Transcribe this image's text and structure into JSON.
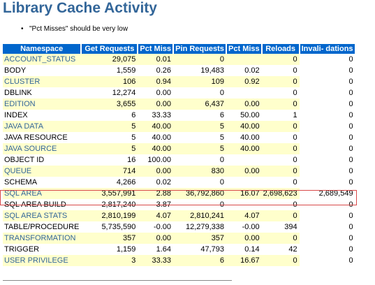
{
  "title": "Library Cache Activity",
  "note": "\"Pct Misses\" should be very low",
  "highlight_color": "#d84a4a",
  "header_color": "#0066cc",
  "columns": [
    "Namespace",
    "Get Requests",
    "Pct Miss",
    "Pin Requests",
    "Pct Miss",
    "Reloads",
    "Invali- dations"
  ],
  "rows": [
    [
      "ACCOUNT_STATUS",
      "29,075",
      "0.01",
      "0",
      "",
      "0",
      "0"
    ],
    [
      "BODY",
      "1,559",
      "0.26",
      "19,483",
      "0.02",
      "0",
      "0"
    ],
    [
      "CLUSTER",
      "106",
      "0.94",
      "109",
      "0.92",
      "0",
      "0"
    ],
    [
      "DBLINK",
      "12,274",
      "0.00",
      "0",
      "",
      "0",
      "0"
    ],
    [
      "EDITION",
      "3,655",
      "0.00",
      "6,437",
      "0.00",
      "0",
      "0"
    ],
    [
      "INDEX",
      "6",
      "33.33",
      "6",
      "50.00",
      "1",
      "0"
    ],
    [
      "JAVA DATA",
      "5",
      "40.00",
      "5",
      "40.00",
      "0",
      "0"
    ],
    [
      "JAVA RESOURCE",
      "5",
      "40.00",
      "5",
      "40.00",
      "0",
      "0"
    ],
    [
      "JAVA SOURCE",
      "5",
      "40.00",
      "5",
      "40.00",
      "0",
      "0"
    ],
    [
      "OBJECT ID",
      "16",
      "100.00",
      "0",
      "",
      "0",
      "0"
    ],
    [
      "QUEUE",
      "714",
      "0.00",
      "830",
      "0.00",
      "0",
      "0"
    ],
    [
      "SCHEMA",
      "4,266",
      "0.02",
      "0",
      "",
      "0",
      "0"
    ],
    [
      "SQL AREA",
      "3,557,991",
      "2.88",
      "36,792,860",
      "16.07",
      "2,698,623",
      "2,689,549"
    ],
    [
      "SQL AREA BUILD",
      "2,817,240",
      "3.87",
      "0",
      "",
      "0",
      "0"
    ],
    [
      "SQL AREA STATS",
      "2,810,199",
      "4.07",
      "2,810,241",
      "4.07",
      "0",
      "0"
    ],
    [
      "TABLE/PROCEDURE",
      "5,735,590",
      "-0.00",
      "12,279,338",
      "-0.00",
      "394",
      "0"
    ],
    [
      "TRANSFORMATION",
      "357",
      "0.00",
      "357",
      "0.00",
      "0",
      "0"
    ],
    [
      "TRIGGER",
      "1,159",
      "1.64",
      "47,793",
      "0.14",
      "42",
      "0"
    ],
    [
      "USER PRIVILEGE",
      "3",
      "33.33",
      "6",
      "16.67",
      "0",
      "0"
    ]
  ]
}
